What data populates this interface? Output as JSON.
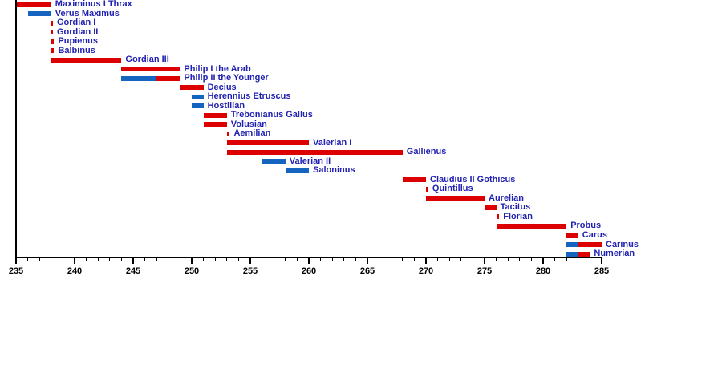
{
  "chart_data": {
    "type": "bar",
    "subtype": "horizontal-timeline-gantt",
    "title": "",
    "xlabel": "",
    "ylabel": "",
    "xlim": [
      235,
      285
    ],
    "x_major_ticks": [
      235,
      240,
      245,
      250,
      255,
      260,
      265,
      270,
      275,
      280,
      285
    ],
    "x_minor_tick_interval": 1,
    "grid": "off",
    "legend": "none",
    "colors": {
      "augustus": "#dd0000",
      "caesar": "#1565c0",
      "label_text": "#2222b2",
      "axis": "#000000",
      "background": "#ffffff"
    },
    "emperors": [
      {
        "name": "Maximinus I Thrax",
        "segments": [
          {
            "role": "augustus",
            "start": 235,
            "end": 238
          }
        ]
      },
      {
        "name": "Verus Maximus",
        "segments": [
          {
            "role": "caesar",
            "start": 236,
            "end": 238
          }
        ]
      },
      {
        "name": "Gordian I",
        "segments": [
          {
            "role": "augustus",
            "start": 238,
            "end": 238.15
          }
        ]
      },
      {
        "name": "Gordian II",
        "segments": [
          {
            "role": "augustus",
            "start": 238,
            "end": 238.15
          }
        ]
      },
      {
        "name": "Pupienus",
        "segments": [
          {
            "role": "augustus",
            "start": 238,
            "end": 238.25
          }
        ]
      },
      {
        "name": "Balbinus",
        "segments": [
          {
            "role": "augustus",
            "start": 238,
            "end": 238.25
          }
        ]
      },
      {
        "name": "Gordian III",
        "segments": [
          {
            "role": "augustus",
            "start": 238,
            "end": 244
          }
        ]
      },
      {
        "name": "Philip I the Arab",
        "segments": [
          {
            "role": "augustus",
            "start": 244,
            "end": 249
          }
        ]
      },
      {
        "name": "Philip II the Younger",
        "segments": [
          {
            "role": "caesar",
            "start": 244,
            "end": 247
          },
          {
            "role": "augustus",
            "start": 247,
            "end": 249
          }
        ]
      },
      {
        "name": "Decius",
        "segments": [
          {
            "role": "augustus",
            "start": 249,
            "end": 251
          }
        ]
      },
      {
        "name": "Herennius Etruscus",
        "segments": [
          {
            "role": "caesar",
            "start": 250,
            "end": 251
          }
        ]
      },
      {
        "name": "Hostilian",
        "segments": [
          {
            "role": "caesar",
            "start": 250,
            "end": 251
          }
        ]
      },
      {
        "name": "Trebonianus Gallus",
        "segments": [
          {
            "role": "augustus",
            "start": 251,
            "end": 253
          }
        ]
      },
      {
        "name": "Volusian",
        "segments": [
          {
            "role": "augustus",
            "start": 251,
            "end": 253
          }
        ]
      },
      {
        "name": "Aemilian",
        "segments": [
          {
            "role": "augustus",
            "start": 253,
            "end": 253.25
          }
        ]
      },
      {
        "name": "Valerian I",
        "segments": [
          {
            "role": "augustus",
            "start": 253,
            "end": 260
          }
        ]
      },
      {
        "name": "Gallienus",
        "segments": [
          {
            "role": "augustus",
            "start": 253,
            "end": 268
          }
        ]
      },
      {
        "name": "Valerian II",
        "segments": [
          {
            "role": "caesar",
            "start": 256,
            "end": 258
          }
        ]
      },
      {
        "name": "Saloninus",
        "segments": [
          {
            "role": "caesar",
            "start": 258,
            "end": 260
          }
        ]
      },
      {
        "name": "Claudius II Gothicus",
        "segments": [
          {
            "role": "augustus",
            "start": 268,
            "end": 270
          }
        ]
      },
      {
        "name": "Quintillus",
        "segments": [
          {
            "role": "augustus",
            "start": 270,
            "end": 270.2
          }
        ]
      },
      {
        "name": "Aurelian",
        "segments": [
          {
            "role": "augustus",
            "start": 270,
            "end": 275
          }
        ]
      },
      {
        "name": "Tacitus",
        "segments": [
          {
            "role": "augustus",
            "start": 275,
            "end": 276
          }
        ]
      },
      {
        "name": "Florian",
        "segments": [
          {
            "role": "augustus",
            "start": 276,
            "end": 276.25
          }
        ]
      },
      {
        "name": "Probus",
        "segments": [
          {
            "role": "augustus",
            "start": 276,
            "end": 282
          }
        ]
      },
      {
        "name": "Carus",
        "segments": [
          {
            "role": "augustus",
            "start": 282,
            "end": 283
          }
        ]
      },
      {
        "name": "Carinus",
        "segments": [
          {
            "role": "caesar",
            "start": 282,
            "end": 283
          },
          {
            "role": "augustus",
            "start": 283,
            "end": 285
          }
        ]
      },
      {
        "name": "Numerian",
        "segments": [
          {
            "role": "caesar",
            "start": 282,
            "end": 283
          },
          {
            "role": "augustus",
            "start": 283,
            "end": 284
          }
        ]
      }
    ]
  }
}
